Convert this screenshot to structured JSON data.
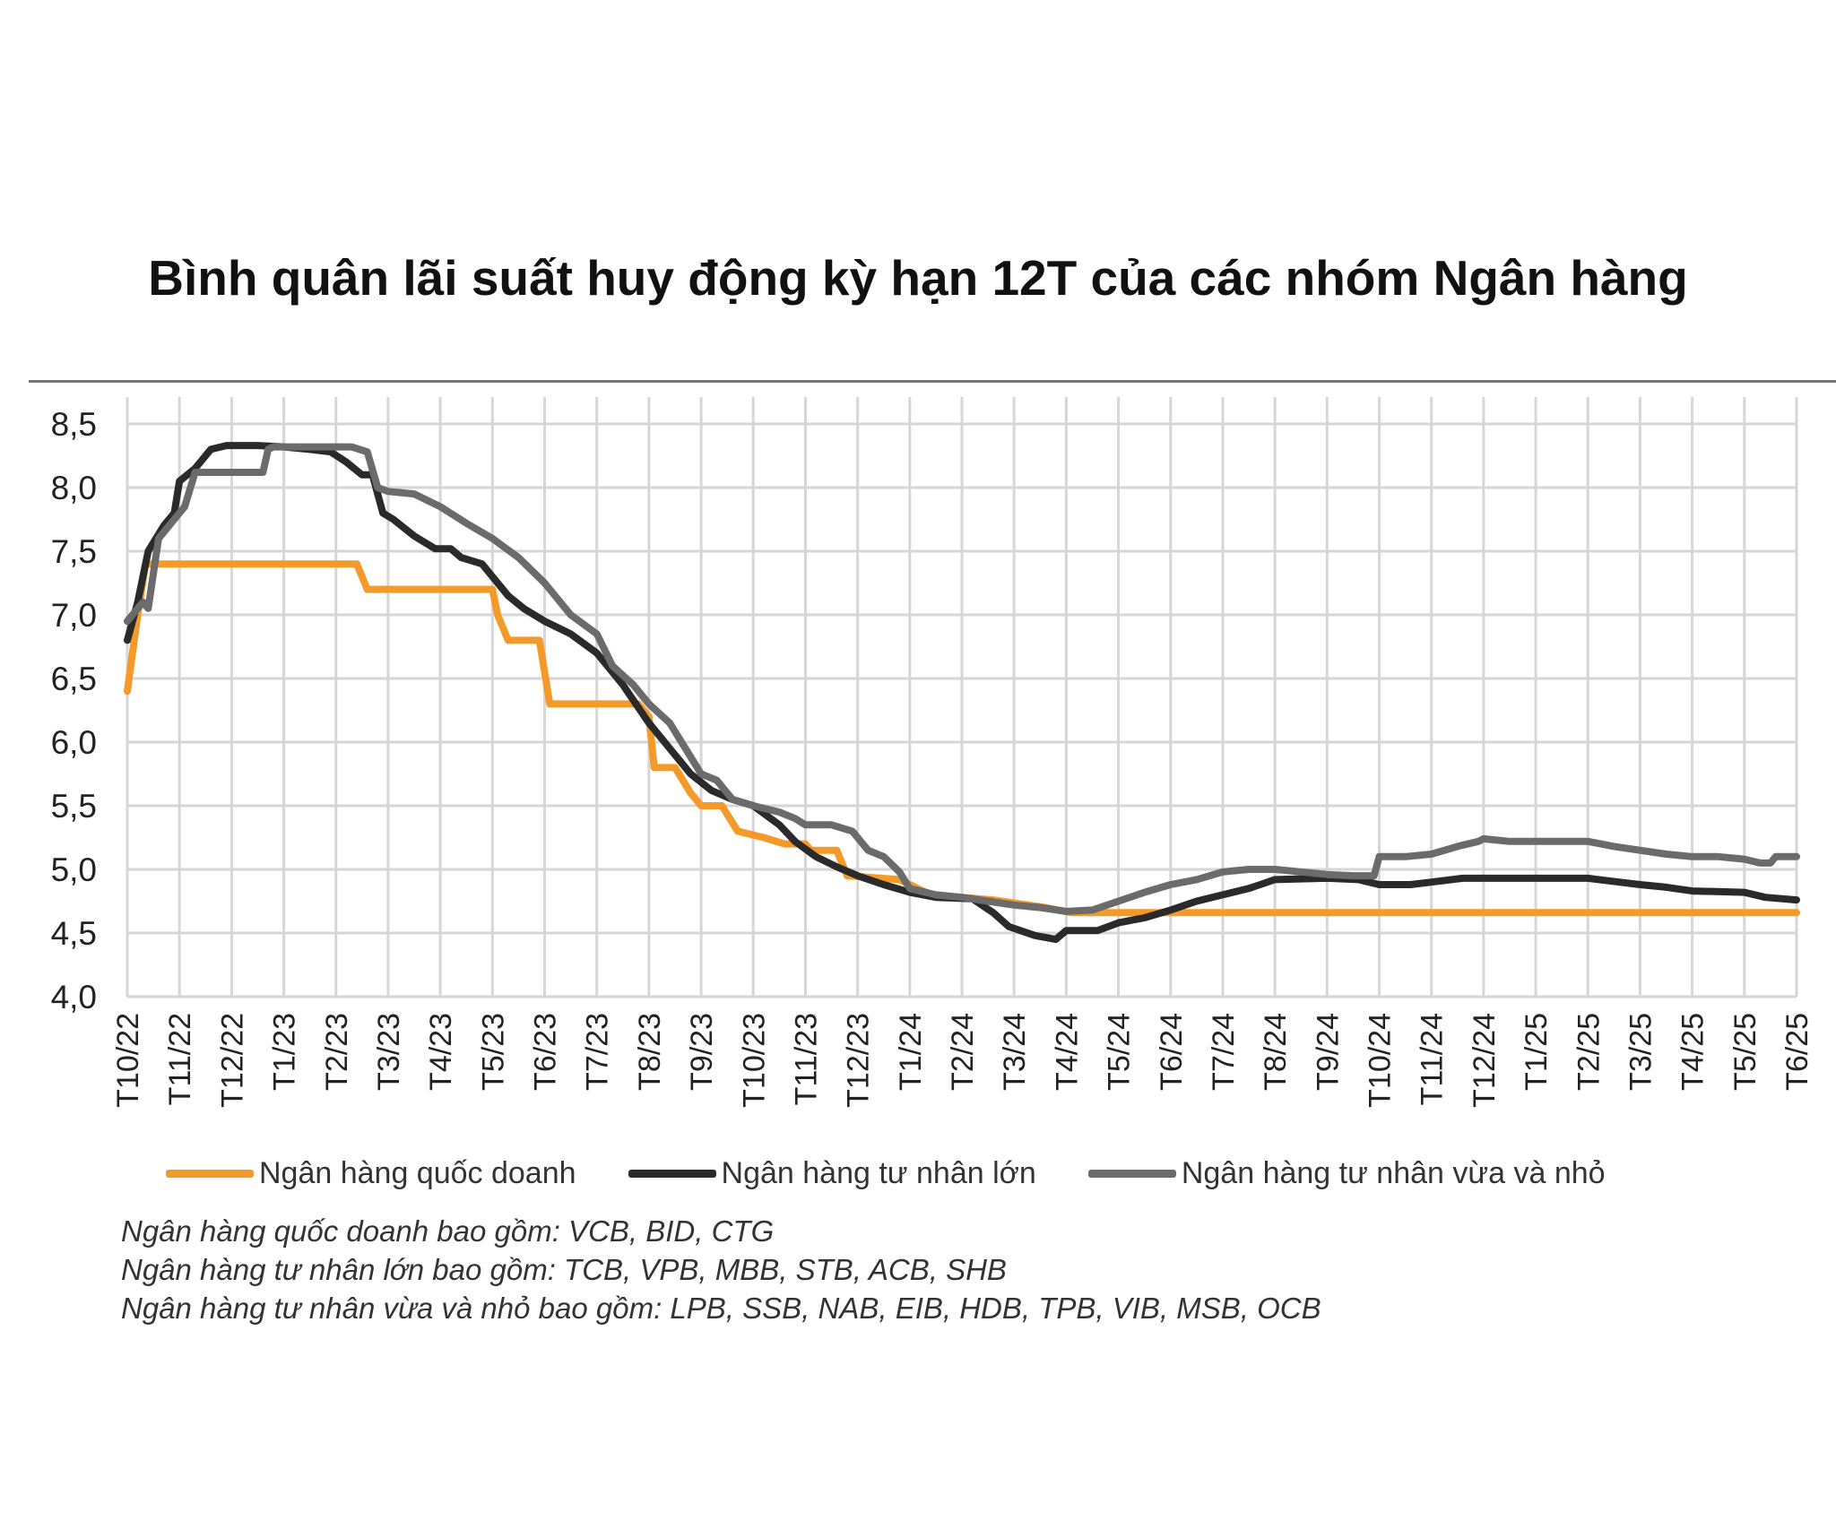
{
  "chart_data": {
    "type": "line",
    "title": "Bình quân lãi suất huy động kỳ hạn 12T của các nhóm Ngân hàng",
    "xlabel": "",
    "ylabel": "",
    "ylim": [
      4.0,
      8.5
    ],
    "y_ticks": [
      "4,0",
      "4,5",
      "5,0",
      "5,5",
      "6,0",
      "6,5",
      "7,0",
      "7,5",
      "8,0",
      "8,5"
    ],
    "grid": true,
    "legend_position": "bottom",
    "categories": [
      "T10/22",
      "T11/22",
      "T12/22",
      "T1/23",
      "T2/23",
      "T3/23",
      "T4/23",
      "T5/23",
      "T6/23",
      "T7/23",
      "T8/23",
      "T9/23",
      "T10/23",
      "T11/23",
      "T12/23",
      "T1/24",
      "T2/24",
      "T3/24",
      "T4/24",
      "T5/24",
      "T6/24",
      "T7/24",
      "T8/24",
      "T9/24",
      "T10/24",
      "T11/24",
      "T12/24",
      "T1/25",
      "T2/25",
      "T3/25",
      "T4/25",
      "T5/25",
      "T6/25"
    ],
    "series": [
      {
        "name": "Ngân hàng quốc doanh",
        "color": "#f39a2b",
        "points": [
          [
            0,
            6.4
          ],
          [
            0.2,
            7.0
          ],
          [
            0.35,
            7.4
          ],
          [
            4.4,
            7.4
          ],
          [
            4.6,
            7.2
          ],
          [
            7.0,
            7.2
          ],
          [
            7.1,
            7.0
          ],
          [
            7.3,
            6.8
          ],
          [
            7.9,
            6.8
          ],
          [
            8.1,
            6.3
          ],
          [
            9.8,
            6.3
          ],
          [
            10.0,
            6.2
          ],
          [
            10.1,
            5.8
          ],
          [
            10.5,
            5.8
          ],
          [
            10.8,
            5.6
          ],
          [
            11.0,
            5.5
          ],
          [
            11.4,
            5.5
          ],
          [
            11.7,
            5.3
          ],
          [
            12.2,
            5.25
          ],
          [
            12.6,
            5.2
          ],
          [
            13.0,
            5.2
          ],
          [
            13.1,
            5.15
          ],
          [
            13.6,
            5.15
          ],
          [
            13.8,
            4.95
          ],
          [
            14.8,
            4.92
          ],
          [
            15.0,
            4.88
          ],
          [
            15.4,
            4.8
          ],
          [
            16.6,
            4.76
          ],
          [
            17.6,
            4.7
          ],
          [
            18.1,
            4.66
          ],
          [
            32,
            4.66
          ]
        ]
      },
      {
        "name": "Ngân hàng tư nhân lớn",
        "color": "#2a2a2a",
        "points": [
          [
            0,
            6.8
          ],
          [
            0.2,
            7.1
          ],
          [
            0.4,
            7.5
          ],
          [
            0.7,
            7.7
          ],
          [
            0.9,
            7.8
          ],
          [
            1.0,
            8.05
          ],
          [
            1.3,
            8.15
          ],
          [
            1.6,
            8.3
          ],
          [
            1.9,
            8.33
          ],
          [
            2.5,
            8.33
          ],
          [
            3.0,
            8.32
          ],
          [
            3.5,
            8.3
          ],
          [
            3.9,
            8.28
          ],
          [
            4.2,
            8.2
          ],
          [
            4.5,
            8.1
          ],
          [
            4.7,
            8.1
          ],
          [
            4.9,
            7.8
          ],
          [
            5.1,
            7.75
          ],
          [
            5.5,
            7.62
          ],
          [
            5.9,
            7.52
          ],
          [
            6.2,
            7.52
          ],
          [
            6.4,
            7.45
          ],
          [
            6.8,
            7.4
          ],
          [
            7.0,
            7.3
          ],
          [
            7.3,
            7.15
          ],
          [
            7.6,
            7.05
          ],
          [
            8.0,
            6.95
          ],
          [
            8.5,
            6.85
          ],
          [
            9.0,
            6.7
          ],
          [
            9.5,
            6.45
          ],
          [
            10.0,
            6.15
          ],
          [
            10.4,
            5.95
          ],
          [
            10.8,
            5.75
          ],
          [
            11.2,
            5.62
          ],
          [
            11.6,
            5.55
          ],
          [
            12.0,
            5.5
          ],
          [
            12.5,
            5.35
          ],
          [
            12.8,
            5.22
          ],
          [
            13.2,
            5.1
          ],
          [
            13.6,
            5.02
          ],
          [
            14.0,
            4.95
          ],
          [
            14.5,
            4.88
          ],
          [
            15.0,
            4.82
          ],
          [
            15.5,
            4.78
          ],
          [
            16.2,
            4.77
          ],
          [
            16.6,
            4.66
          ],
          [
            16.9,
            4.55
          ],
          [
            17.4,
            4.48
          ],
          [
            17.8,
            4.45
          ],
          [
            18.0,
            4.52
          ],
          [
            18.6,
            4.52
          ],
          [
            19.0,
            4.58
          ],
          [
            19.5,
            4.62
          ],
          [
            20.0,
            4.68
          ],
          [
            20.5,
            4.75
          ],
          [
            21.0,
            4.8
          ],
          [
            21.5,
            4.85
          ],
          [
            22.0,
            4.92
          ],
          [
            23.0,
            4.93
          ],
          [
            23.6,
            4.92
          ],
          [
            24.0,
            4.88
          ],
          [
            24.6,
            4.88
          ],
          [
            25.0,
            4.9
          ],
          [
            25.6,
            4.93
          ],
          [
            27.0,
            4.93
          ],
          [
            28.0,
            4.93
          ],
          [
            28.6,
            4.9
          ],
          [
            29.0,
            4.88
          ],
          [
            29.5,
            4.86
          ],
          [
            30.0,
            4.83
          ],
          [
            31.0,
            4.82
          ],
          [
            31.4,
            4.78
          ],
          [
            32,
            4.76
          ]
        ]
      },
      {
        "name": "Ngân hàng tư nhân vừa và nhỏ",
        "color": "#6b6b6b",
        "points": [
          [
            0,
            6.95
          ],
          [
            0.3,
            7.1
          ],
          [
            0.4,
            7.05
          ],
          [
            0.6,
            7.6
          ],
          [
            0.9,
            7.75
          ],
          [
            1.1,
            7.85
          ],
          [
            1.3,
            8.12
          ],
          [
            2.6,
            8.12
          ],
          [
            2.7,
            8.3
          ],
          [
            2.8,
            8.32
          ],
          [
            3.5,
            8.32
          ],
          [
            3.9,
            8.32
          ],
          [
            4.3,
            8.32
          ],
          [
            4.6,
            8.28
          ],
          [
            4.8,
            8.0
          ],
          [
            5.0,
            7.97
          ],
          [
            5.5,
            7.95
          ],
          [
            6.0,
            7.85
          ],
          [
            6.5,
            7.72
          ],
          [
            7.0,
            7.6
          ],
          [
            7.5,
            7.45
          ],
          [
            8.0,
            7.25
          ],
          [
            8.5,
            7.0
          ],
          [
            9.0,
            6.85
          ],
          [
            9.3,
            6.6
          ],
          [
            9.7,
            6.45
          ],
          [
            10.0,
            6.3
          ],
          [
            10.4,
            6.15
          ],
          [
            10.7,
            5.95
          ],
          [
            11.0,
            5.75
          ],
          [
            11.3,
            5.7
          ],
          [
            11.6,
            5.55
          ],
          [
            12.0,
            5.5
          ],
          [
            12.5,
            5.45
          ],
          [
            12.8,
            5.4
          ],
          [
            13.0,
            5.35
          ],
          [
            13.5,
            5.35
          ],
          [
            13.9,
            5.3
          ],
          [
            14.2,
            5.15
          ],
          [
            14.5,
            5.1
          ],
          [
            14.8,
            4.98
          ],
          [
            15.0,
            4.85
          ],
          [
            15.5,
            4.8
          ],
          [
            16.0,
            4.78
          ],
          [
            16.5,
            4.75
          ],
          [
            17.0,
            4.72
          ],
          [
            17.5,
            4.7
          ],
          [
            18.0,
            4.67
          ],
          [
            18.5,
            4.68
          ],
          [
            19.0,
            4.75
          ],
          [
            19.5,
            4.82
          ],
          [
            20.0,
            4.88
          ],
          [
            20.5,
            4.92
          ],
          [
            21.0,
            4.98
          ],
          [
            21.5,
            5.0
          ],
          [
            22.0,
            5.0
          ],
          [
            22.5,
            4.98
          ],
          [
            23.0,
            4.96
          ],
          [
            23.5,
            4.95
          ],
          [
            23.9,
            4.95
          ],
          [
            24.0,
            5.1
          ],
          [
            24.5,
            5.1
          ],
          [
            25.0,
            5.12
          ],
          [
            25.5,
            5.18
          ],
          [
            25.9,
            5.22
          ],
          [
            26.0,
            5.24
          ],
          [
            26.5,
            5.22
          ],
          [
            27.0,
            5.22
          ],
          [
            28.0,
            5.22
          ],
          [
            28.5,
            5.18
          ],
          [
            29.0,
            5.15
          ],
          [
            29.5,
            5.12
          ],
          [
            30.0,
            5.1
          ],
          [
            30.5,
            5.1
          ],
          [
            31.0,
            5.08
          ],
          [
            31.3,
            5.05
          ],
          [
            31.5,
            5.05
          ],
          [
            31.6,
            5.1
          ],
          [
            32,
            5.1
          ]
        ]
      }
    ]
  },
  "notes": [
    "Ngân hàng quốc doanh bao gồm: VCB, BID, CTG",
    "Ngân hàng tư nhân lớn bao gồm: TCB, VPB, MBB, STB, ACB, SHB",
    "Ngân hàng tư nhân vừa và nhỏ bao gồm: LPB, SSB, NAB, EIB, HDB, TPB, VIB, MSB, OCB"
  ]
}
